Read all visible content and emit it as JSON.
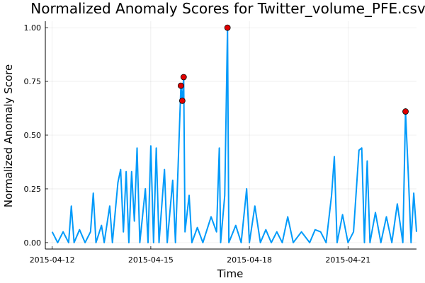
{
  "chart_data": {
    "type": "line",
    "title": "Normalized Anomaly Scores for Twitter_volume_PFE.csv",
    "xlabel": "Time",
    "ylabel": "Normalized Anomaly Score",
    "x_start": "2015-04-12",
    "x_end": "2015-04-23",
    "xlim": [
      "2015-04-11T19:00",
      "2015-04-23T02:00"
    ],
    "ylim": [
      -0.03,
      1.03
    ],
    "x_ticks": [
      "2015-04-12",
      "2015-04-15",
      "2015-04-18",
      "2015-04-21"
    ],
    "y_ticks": [
      0.0,
      0.25,
      0.5,
      0.75,
      1.0
    ],
    "y_tick_labels": [
      "0.00",
      "0.25",
      "0.50",
      "0.75",
      "1.00"
    ],
    "grid": true,
    "legend": "none",
    "line_color": "#009AFA",
    "marker_color": "#E00000",
    "series": [
      {
        "values": [
          [
            "2015-04-12T00:00",
            0.05
          ],
          [
            "2015-04-12T04:00",
            0.0
          ],
          [
            "2015-04-12T08:00",
            0.05
          ],
          [
            "2015-04-12T12:00",
            0.0
          ],
          [
            "2015-04-12T14:00",
            0.17
          ],
          [
            "2015-04-12T16:00",
            0.0
          ],
          [
            "2015-04-12T20:00",
            0.06
          ],
          [
            "2015-04-13T00:00",
            0.0
          ],
          [
            "2015-04-13T04:00",
            0.05
          ],
          [
            "2015-04-13T06:00",
            0.23
          ],
          [
            "2015-04-13T08:00",
            0.0
          ],
          [
            "2015-04-13T12:00",
            0.08
          ],
          [
            "2015-04-13T14:00",
            0.0
          ],
          [
            "2015-04-13T18:00",
            0.17
          ],
          [
            "2015-04-13T20:00",
            0.0
          ],
          [
            "2015-04-14T00:00",
            0.28
          ],
          [
            "2015-04-14T02:00",
            0.34
          ],
          [
            "2015-04-14T04:00",
            0.05
          ],
          [
            "2015-04-14T06:00",
            0.33
          ],
          [
            "2015-04-14T08:00",
            0.0
          ],
          [
            "2015-04-14T10:00",
            0.33
          ],
          [
            "2015-04-14T12:00",
            0.1
          ],
          [
            "2015-04-14T14:00",
            0.44
          ],
          [
            "2015-04-14T16:00",
            0.0
          ],
          [
            "2015-04-14T20:00",
            0.25
          ],
          [
            "2015-04-14T22:00",
            0.0
          ],
          [
            "2015-04-15T00:00",
            0.45
          ],
          [
            "2015-04-15T02:00",
            0.0
          ],
          [
            "2015-04-15T04:00",
            0.44
          ],
          [
            "2015-04-15T06:00",
            0.0
          ],
          [
            "2015-04-15T10:00",
            0.34
          ],
          [
            "2015-04-15T12:00",
            0.0
          ],
          [
            "2015-04-15T16:00",
            0.29
          ],
          [
            "2015-04-15T18:00",
            0.0
          ],
          [
            "2015-04-15T22:00",
            0.73
          ],
          [
            "2015-04-15T23:00",
            0.66
          ],
          [
            "2015-04-16T00:00",
            0.77
          ],
          [
            "2015-04-16T01:00",
            0.05
          ],
          [
            "2015-04-16T04:00",
            0.22
          ],
          [
            "2015-04-16T06:00",
            0.0
          ],
          [
            "2015-04-16T10:00",
            0.07
          ],
          [
            "2015-04-16T14:00",
            0.0
          ],
          [
            "2015-04-16T20:00",
            0.12
          ],
          [
            "2015-04-17T00:00",
            0.05
          ],
          [
            "2015-04-17T02:00",
            0.44
          ],
          [
            "2015-04-17T03:00",
            0.0
          ],
          [
            "2015-04-17T06:00",
            0.22
          ],
          [
            "2015-04-17T08:00",
            1.0
          ],
          [
            "2015-04-17T09:00",
            0.0
          ],
          [
            "2015-04-17T14:00",
            0.08
          ],
          [
            "2015-04-17T18:00",
            0.0
          ],
          [
            "2015-04-17T22:00",
            0.25
          ],
          [
            "2015-04-18T00:00",
            0.0
          ],
          [
            "2015-04-18T04:00",
            0.17
          ],
          [
            "2015-04-18T08:00",
            0.0
          ],
          [
            "2015-04-18T12:00",
            0.06
          ],
          [
            "2015-04-18T16:00",
            0.0
          ],
          [
            "2015-04-18T20:00",
            0.05
          ],
          [
            "2015-04-19T00:00",
            0.0
          ],
          [
            "2015-04-19T04:00",
            0.12
          ],
          [
            "2015-04-19T08:00",
            0.0
          ],
          [
            "2015-04-19T14:00",
            0.05
          ],
          [
            "2015-04-19T20:00",
            0.0
          ],
          [
            "2015-04-20T00:00",
            0.06
          ],
          [
            "2015-04-20T04:00",
            0.05
          ],
          [
            "2015-04-20T08:00",
            0.0
          ],
          [
            "2015-04-20T12:00",
            0.22
          ],
          [
            "2015-04-20T14:00",
            0.4
          ],
          [
            "2015-04-20T16:00",
            0.0
          ],
          [
            "2015-04-20T20:00",
            0.13
          ],
          [
            "2015-04-21T00:00",
            0.0
          ],
          [
            "2015-04-21T04:00",
            0.05
          ],
          [
            "2015-04-21T08:00",
            0.43
          ],
          [
            "2015-04-21T10:00",
            0.44
          ],
          [
            "2015-04-21T12:00",
            0.0
          ],
          [
            "2015-04-21T14:00",
            0.38
          ],
          [
            "2015-04-21T16:00",
            0.0
          ],
          [
            "2015-04-21T20:00",
            0.14
          ],
          [
            "2015-04-22T00:00",
            0.0
          ],
          [
            "2015-04-22T04:00",
            0.12
          ],
          [
            "2015-04-22T08:00",
            0.0
          ],
          [
            "2015-04-22T12:00",
            0.18
          ],
          [
            "2015-04-22T16:00",
            0.0
          ],
          [
            "2015-04-22T18:00",
            0.61
          ],
          [
            "2015-04-22T20:00",
            0.32
          ],
          [
            "2015-04-22T22:00",
            0.0
          ],
          [
            "2015-04-23T00:00",
            0.23
          ],
          [
            "2015-04-23T02:00",
            0.05
          ]
        ]
      }
    ],
    "anomalies": [
      [
        "2015-04-15T22:00",
        0.73
      ],
      [
        "2015-04-15T23:00",
        0.66
      ],
      [
        "2015-04-16T00:00",
        0.77
      ],
      [
        "2015-04-17T08:00",
        1.0
      ],
      [
        "2015-04-22T18:00",
        0.61
      ]
    ]
  }
}
